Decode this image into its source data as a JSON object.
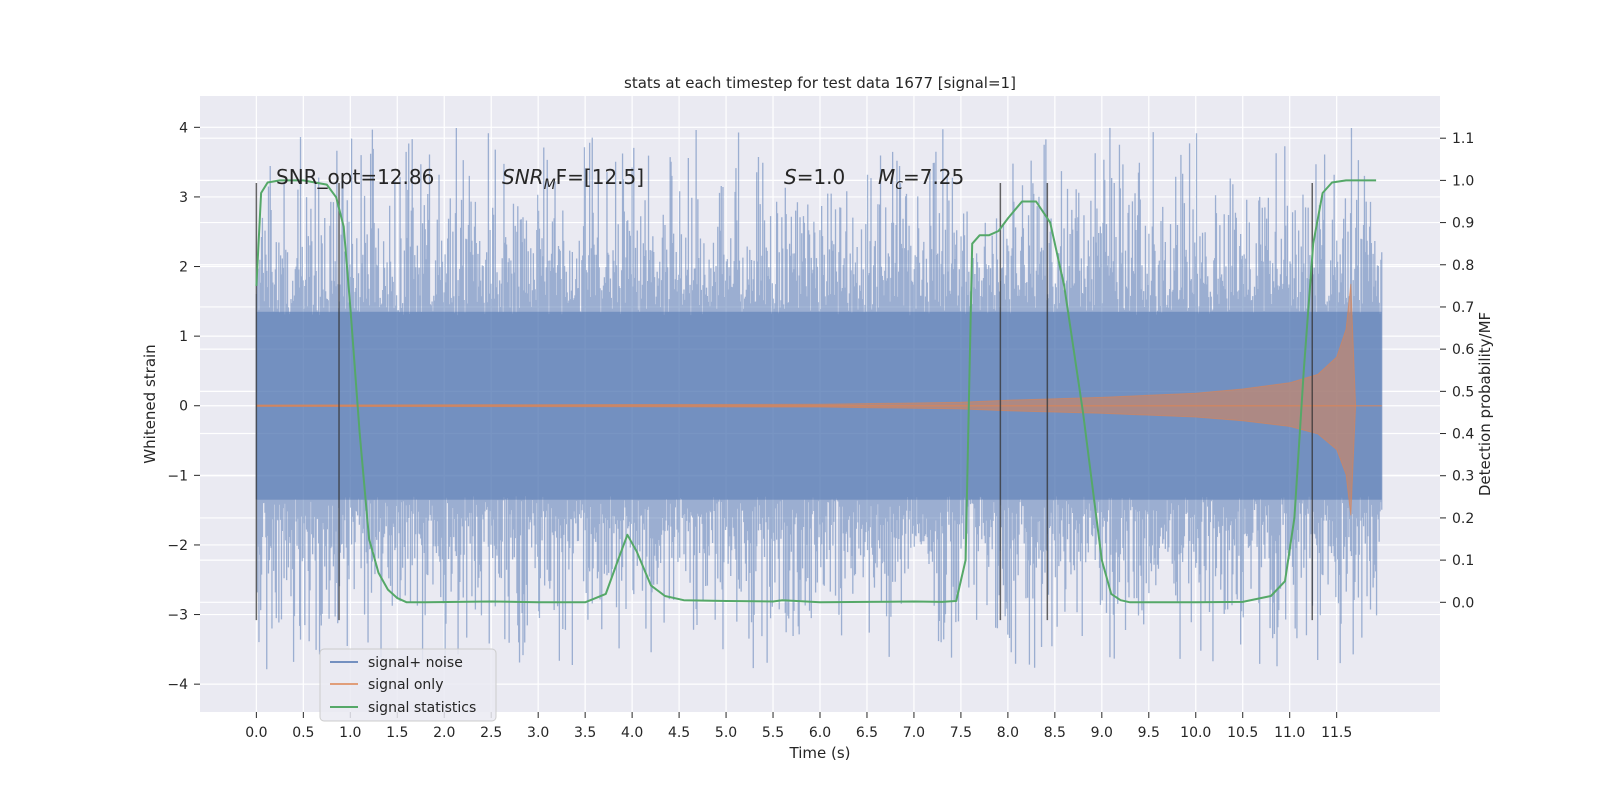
{
  "chart_data": {
    "type": "line",
    "title": "stats at each timestep for test data 1677 [signal=1]",
    "xlabel": "Time (s)",
    "ylabel": "Whitened strain",
    "ylabel_right": "Detection probability/MF",
    "xlim": [
      -0.6,
      12.6
    ],
    "ylim": [
      -4.4,
      4.45
    ],
    "ylim_right": [
      -0.26,
      1.2
    ],
    "grid": true,
    "legend_position": "lower-left",
    "x_ticks": [
      "0.0",
      "0.5",
      "1.0",
      "1.5",
      "2.0",
      "2.5",
      "3.0",
      "3.5",
      "4.0",
      "4.5",
      "5.0",
      "5.5",
      "6.0",
      "6.5",
      "7.0",
      "7.5",
      "8.0",
      "8.5",
      "9.0",
      "9.5",
      "10.0",
      "10.5",
      "11.0",
      "11.5"
    ],
    "y_ticks_left": [
      "−4",
      "−3",
      "−2",
      "−1",
      "0",
      "1",
      "2",
      "3",
      "4"
    ],
    "y_ticks_right": [
      "0.0",
      "0.1",
      "0.2",
      "0.3",
      "0.4",
      "0.5",
      "0.6",
      "0.7",
      "0.8",
      "0.9",
      "1.0",
      "1.1"
    ],
    "annotations": {
      "snr_opt": "SNR_opt=12.86",
      "snr_mf_base": "SNR",
      "snr_mf_sub": "M",
      "snr_mf_rest": "F=[12.5]",
      "s_label": "S",
      "s_value": "=1.0",
      "mc_base": "M",
      "mc_sub": "c",
      "mc_value": "=7.25"
    },
    "vertical_markers": [
      0.0,
      0.88,
      7.92,
      8.42,
      11.24
    ],
    "series": [
      {
        "name": "signal+ noise",
        "axis": "left",
        "color": "#4c72b0",
        "x_range": [
          0.0,
          11.98
        ],
        "envelope_typical": [
          -2.0,
          2.0
        ],
        "peak_range": [
          -3.9,
          4.1
        ]
      },
      {
        "name": "signal only",
        "axis": "left",
        "color": "#dd8452",
        "x": [
          0.0,
          6.0,
          7.5,
          8.0,
          9.0,
          10.0,
          10.5,
          11.0,
          11.3,
          11.5,
          11.6,
          11.65,
          11.7
        ],
        "amplitude": [
          0.01,
          0.02,
          0.05,
          0.08,
          0.12,
          0.18,
          0.24,
          0.33,
          0.45,
          0.7,
          1.1,
          1.75,
          0.02
        ]
      },
      {
        "name": "signal statistics",
        "axis": "right",
        "color": "#55a868",
        "x": [
          0.0,
          0.05,
          0.12,
          0.25,
          0.5,
          0.75,
          0.85,
          0.93,
          1.0,
          1.1,
          1.2,
          1.3,
          1.4,
          1.5,
          1.6,
          1.8,
          2.5,
          3.0,
          3.5,
          3.72,
          3.85,
          3.95,
          4.05,
          4.2,
          4.35,
          4.55,
          5.0,
          5.5,
          5.6,
          6.0,
          6.5,
          7.0,
          7.3,
          7.45,
          7.55,
          7.62,
          7.7,
          7.8,
          7.9,
          8.0,
          8.15,
          8.3,
          8.45,
          8.6,
          8.8,
          9.0,
          9.1,
          9.2,
          9.3,
          9.6,
          10.0,
          10.5,
          10.8,
          10.95,
          11.05,
          11.15,
          11.25,
          11.35,
          11.45,
          11.6,
          11.8,
          11.92
        ],
        "values": [
          0.75,
          0.97,
          0.995,
          1.0,
          1.0,
          0.99,
          0.96,
          0.89,
          0.7,
          0.4,
          0.15,
          0.07,
          0.03,
          0.01,
          0.0,
          0.0,
          0.002,
          0.0,
          0.0,
          0.02,
          0.1,
          0.16,
          0.12,
          0.04,
          0.015,
          0.005,
          0.003,
          0.002,
          0.005,
          0.0,
          0.001,
          0.002,
          0.001,
          0.003,
          0.1,
          0.85,
          0.87,
          0.87,
          0.88,
          0.91,
          0.95,
          0.95,
          0.9,
          0.75,
          0.45,
          0.1,
          0.02,
          0.005,
          0.0,
          0.0,
          0.0,
          0.001,
          0.015,
          0.05,
          0.2,
          0.55,
          0.85,
          0.97,
          0.995,
          1.0,
          1.0,
          1.0
        ]
      }
    ]
  }
}
